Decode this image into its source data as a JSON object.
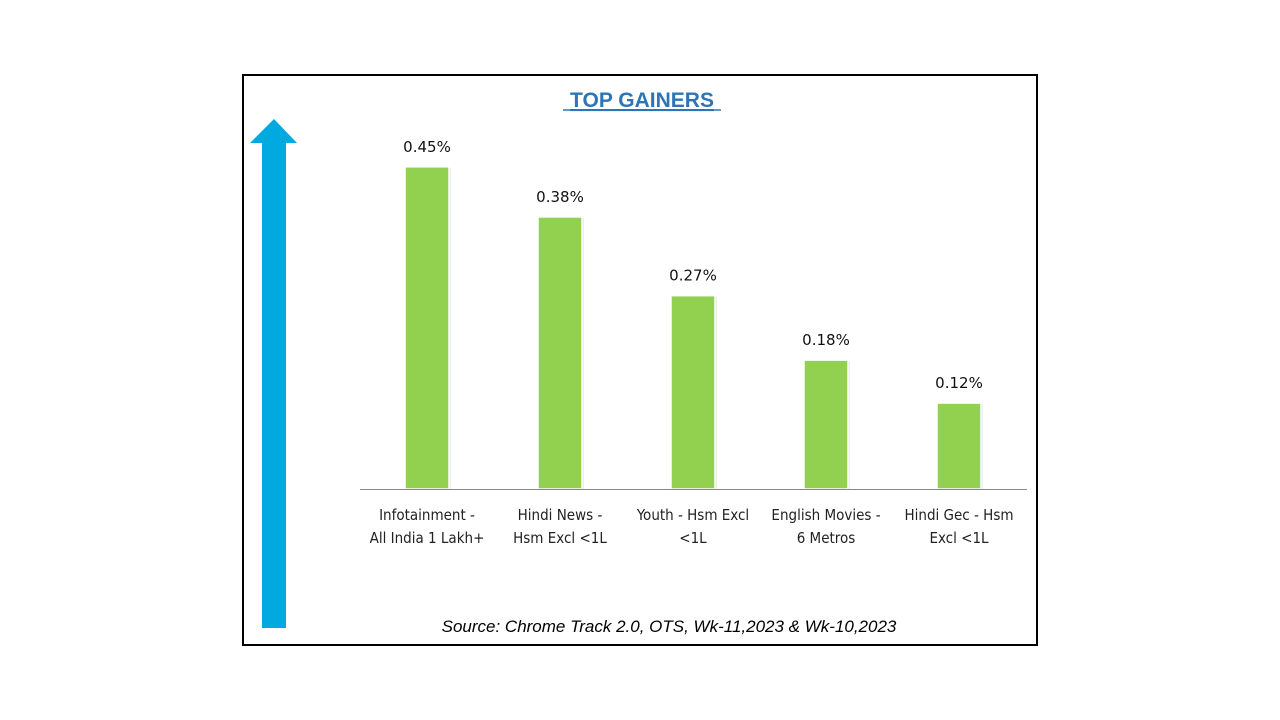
{
  "chart_data": {
    "type": "bar",
    "title": "TOP GAINERS",
    "categories": [
      [
        "Infotainment -",
        "All India 1 Lakh+"
      ],
      [
        "Hindi News -",
        "Hsm Excl <1L"
      ],
      [
        "Youth - Hsm Excl",
        "<1L"
      ],
      [
        "English Movies -",
        "6 Metros"
      ],
      [
        "Hindi Gec - Hsm",
        "Excl <1L"
      ]
    ],
    "values": [
      0.45,
      0.38,
      0.27,
      0.18,
      0.12
    ],
    "value_labels": [
      "0.45%",
      "0.38%",
      "0.27%",
      "0.18%",
      "0.12%"
    ],
    "unit": "%",
    "ylim": [
      0,
      0.5
    ],
    "grid": false,
    "legend": "none",
    "source": "Source: Chrome Track 2.0, OTS, Wk-11,2023 & Wk-10,2023",
    "colors": {
      "bar": "#92d050",
      "arrow": "#00a9e0",
      "title": "#2e75b6",
      "frame": "#000000"
    }
  }
}
